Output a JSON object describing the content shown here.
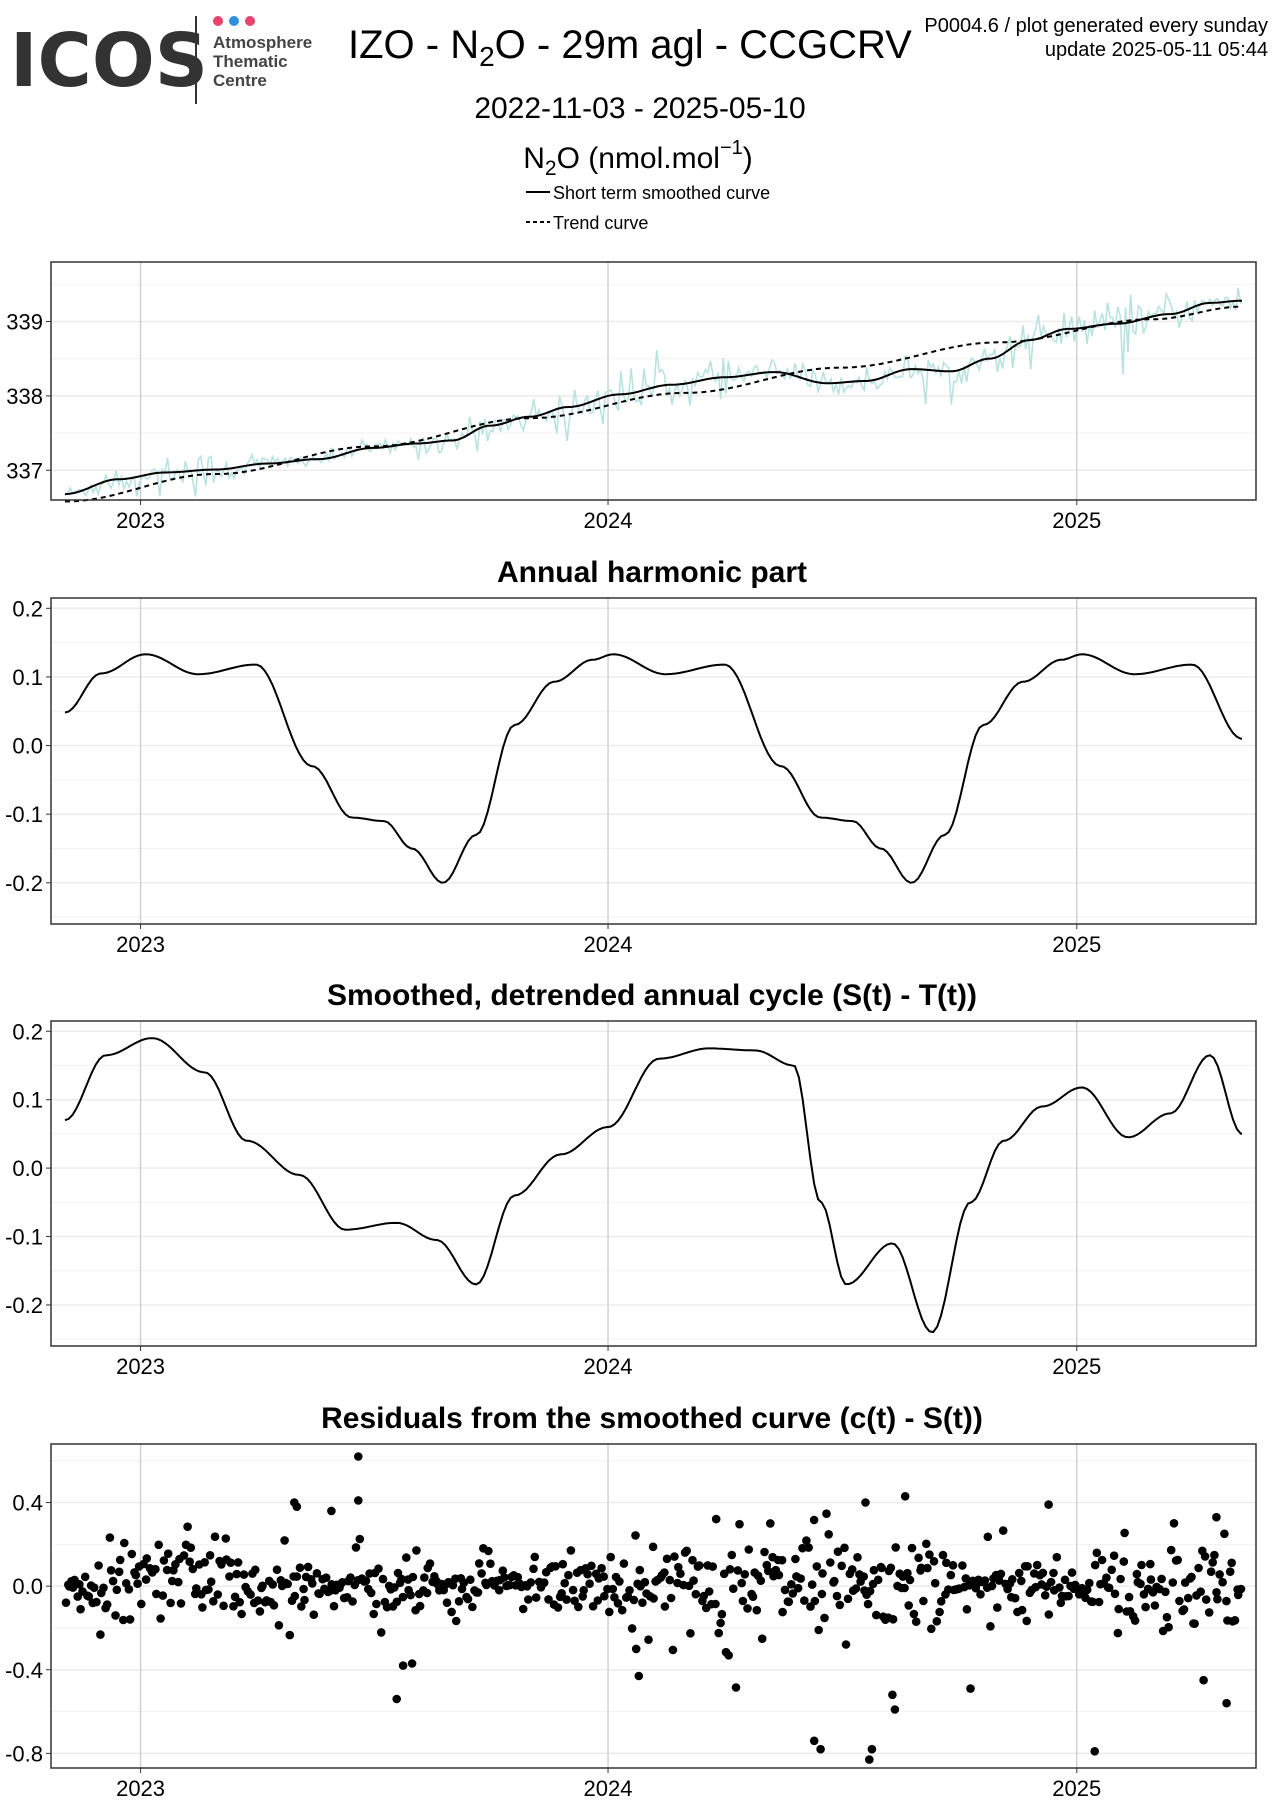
{
  "header": {
    "logo": {
      "wordmark": "ICOS",
      "line1": "Atmosphere",
      "line2": "Thematic",
      "line3": "Centre",
      "dot_colors": [
        "#e9426c",
        "#2f8ee0",
        "#e9426c"
      ]
    },
    "title_pre": "IZO - N",
    "title_sub": "2",
    "title_post": "O - 29m agl - CCGCRV",
    "date_range": "2022-11-03 - 2025-05-10",
    "unit_pre": "N",
    "unit_sub": "2",
    "unit_mid": "O (nmol.mol",
    "unit_sup": "−1",
    "unit_post": ")",
    "corner_line1": "P0004.6 / plot generated every sunday",
    "corner_line2": "update  2025-05-11 05:44"
  },
  "legend": {
    "smoothed": "Short term smoothed curve",
    "trend": "Trend curve"
  },
  "colors": {
    "raw": "#b9e3de",
    "grid": "#ebebeb",
    "year_grid": "#cfcfcf",
    "line": "#000000"
  },
  "chart_data": [
    {
      "type": "line",
      "panel": "concentration",
      "title": "",
      "x_domain": [
        "2022-11-03",
        "2025-05-10"
      ],
      "xticks": [
        "2023",
        "2024",
        "2025"
      ],
      "yticks": [
        "337",
        "338",
        "339"
      ],
      "ylim": [
        336.6,
        339.8
      ],
      "grid": true,
      "series": [
        {
          "name": "Short term smoothed curve",
          "style": "solid",
          "x": [
            "2022-11-03",
            "2022-12-15",
            "2023-01-20",
            "2023-03-01",
            "2023-04-10",
            "2023-05-20",
            "2023-07-01",
            "2023-08-05",
            "2023-09-01",
            "2023-10-01",
            "2023-11-01",
            "2023-12-01",
            "2024-01-10",
            "2024-02-20",
            "2024-04-01",
            "2024-05-10",
            "2024-06-20",
            "2024-07-20",
            "2024-08-25",
            "2024-09-25",
            "2024-10-25",
            "2024-11-25",
            "2024-12-25",
            "2025-02-01",
            "2025-03-15",
            "2025-04-15",
            "2025-05-10"
          ],
          "y": [
            336.68,
            336.88,
            336.97,
            337.01,
            337.09,
            337.15,
            337.3,
            337.36,
            337.4,
            337.6,
            337.72,
            337.85,
            338.02,
            338.15,
            338.25,
            338.32,
            338.17,
            338.2,
            338.36,
            338.33,
            338.5,
            338.75,
            338.9,
            338.97,
            339.1,
            339.25,
            339.28
          ]
        },
        {
          "name": "Trend curve",
          "style": "dashed",
          "x": [
            "2022-11-03",
            "2023-03-01",
            "2023-07-01",
            "2023-11-01",
            "2024-03-01",
            "2024-07-01",
            "2024-11-01",
            "2025-03-01",
            "2025-05-10"
          ],
          "y": [
            336.58,
            336.95,
            337.32,
            337.7,
            338.04,
            338.38,
            338.72,
            339.03,
            339.2
          ]
        },
        {
          "name": "Observations",
          "style": "raw",
          "generated_daily_noise_around": "Short term smoothed curve"
        }
      ]
    },
    {
      "type": "line",
      "panel": "harmonic",
      "title": "Annual harmonic part",
      "x_domain": [
        "2022-11-03",
        "2025-05-10"
      ],
      "xticks": [
        "2023",
        "2024",
        "2025"
      ],
      "yticks": [
        "0.2",
        "0.1",
        "0.0",
        "-0.1",
        "-0.2"
      ],
      "ylim": [
        -0.26,
        0.215
      ],
      "grid": true,
      "series": [
        {
          "name": "Annual harmonic part",
          "style": "solid",
          "x": [
            "2022-11-03",
            "2022-12-01",
            "2023-01-05",
            "2023-02-15",
            "2023-04-01",
            "2023-05-15",
            "2023-06-15",
            "2023-07-10",
            "2023-08-01",
            "2023-08-25",
            "2023-09-20",
            "2023-10-20",
            "2023-11-20",
            "2023-12-20",
            "2024-01-05",
            "2024-02-15",
            "2024-04-01",
            "2024-05-15",
            "2024-06-15",
            "2024-07-10",
            "2024-08-01",
            "2024-08-25",
            "2024-09-20",
            "2024-10-20",
            "2024-11-20",
            "2024-12-20",
            "2025-01-05",
            "2025-02-15",
            "2025-04-01",
            "2025-05-10"
          ],
          "y": [
            0.048,
            0.105,
            0.133,
            0.104,
            0.118,
            -0.03,
            -0.105,
            -0.11,
            -0.15,
            -0.2,
            -0.13,
            0.03,
            0.093,
            0.125,
            0.133,
            0.104,
            0.118,
            -0.03,
            -0.105,
            -0.11,
            -0.15,
            -0.2,
            -0.13,
            0.03,
            0.093,
            0.125,
            0.133,
            0.104,
            0.118,
            0.01
          ]
        }
      ]
    },
    {
      "type": "line",
      "panel": "detrended",
      "title": "Smoothed, detrended annual cycle (S(t) - T(t))",
      "x_domain": [
        "2022-11-03",
        "2025-05-10"
      ],
      "xticks": [
        "2023",
        "2024",
        "2025"
      ],
      "yticks": [
        "0.2",
        "0.1",
        "0.0",
        "-0.1",
        "-0.2"
      ],
      "ylim": [
        -0.26,
        0.215
      ],
      "grid": true,
      "series": [
        {
          "name": "Smoothed, detrended annual cycle",
          "style": "solid",
          "x": [
            "2022-11-03",
            "2022-12-05",
            "2023-01-10",
            "2023-02-20",
            "2023-03-25",
            "2023-05-05",
            "2023-06-10",
            "2023-07-20",
            "2023-08-20",
            "2023-09-20",
            "2023-10-20",
            "2023-11-25",
            "2024-01-01",
            "2024-02-10",
            "2024-03-20",
            "2024-04-25",
            "2024-05-25",
            "2024-06-15",
            "2024-07-05",
            "2024-08-10",
            "2024-09-10",
            "2024-10-10",
            "2024-11-05",
            "2024-12-05",
            "2025-01-05",
            "2025-02-10",
            "2025-03-15",
            "2025-04-15",
            "2025-05-10"
          ],
          "y": [
            0.07,
            0.165,
            0.19,
            0.14,
            0.04,
            -0.01,
            -0.09,
            -0.08,
            -0.105,
            -0.17,
            -0.04,
            0.02,
            0.06,
            0.16,
            0.175,
            0.172,
            0.15,
            -0.05,
            -0.17,
            -0.11,
            -0.24,
            -0.05,
            0.04,
            0.09,
            0.118,
            0.045,
            0.08,
            0.165,
            0.05
          ]
        }
      ]
    },
    {
      "type": "scatter",
      "panel": "residuals",
      "title": "Residuals from the smoothed curve (c(t) - S(t))",
      "x_domain": [
        "2022-11-03",
        "2025-05-10"
      ],
      "xticks": [
        "2023",
        "2024",
        "2025"
      ],
      "yticks": [
        "0.4",
        "0.0",
        "-0.4",
        "-0.8"
      ],
      "ylim": [
        -0.87,
        0.68
      ],
      "grid": true,
      "series": [
        {
          "name": "Residuals",
          "style": "points",
          "n_generated": 620,
          "outliers": {
            "x": [
              "2023-06-20",
              "2023-05-01",
              "2023-05-03",
              "2023-06-20",
              "2023-07-20",
              "2023-07-25",
              "2023-08-01",
              "2023-05-30",
              "2024-01-25",
              "2024-01-23",
              "2024-06-15",
              "2024-06-10",
              "2024-07-25",
              "2024-07-23",
              "2024-08-10",
              "2024-08-12",
              "2024-07-20",
              "2024-08-20",
              "2024-10-10",
              "2025-01-15",
              "2024-12-10",
              "2025-04-10",
              "2025-04-28",
              "2025-04-20"
            ],
            "y": [
              0.62,
              0.4,
              0.38,
              0.41,
              -0.54,
              -0.38,
              -0.37,
              0.36,
              -0.43,
              -0.3,
              -0.78,
              -0.74,
              -0.78,
              -0.83,
              -0.52,
              -0.59,
              0.4,
              0.43,
              -0.49,
              -0.79,
              0.39,
              -0.45,
              -0.56,
              0.33
            ]
          }
        }
      ]
    }
  ]
}
